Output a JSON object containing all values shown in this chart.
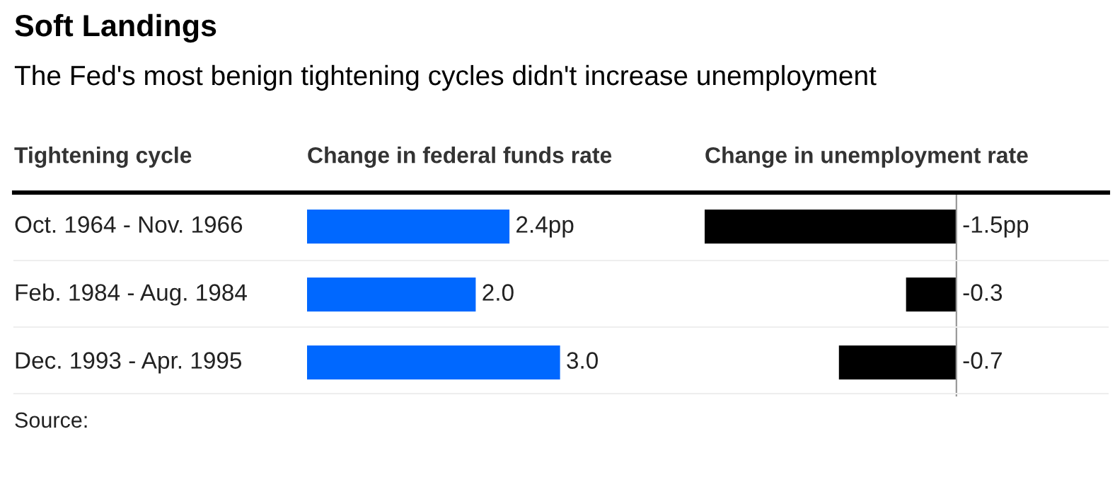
{
  "chart_data": [
    {
      "type": "bar",
      "orientation": "horizontal",
      "title": "Soft Landings",
      "subtitle": "The Fed's most benign tightening cycles didn't increase unemployment",
      "ylabel": "Tightening cycle",
      "xlabel": "Change in federal funds rate",
      "categories": [
        "Oct. 1964 - Nov. 1966",
        "Feb. 1984 - Aug. 1984",
        "Dec. 1993 - Apr. 1995"
      ],
      "values": [
        2.4,
        2.0,
        3.0
      ],
      "value_labels": [
        "2.4pp",
        "2.0",
        "3.0"
      ],
      "color": "#0068ff",
      "legend": false
    },
    {
      "type": "bar",
      "orientation": "horizontal",
      "xlabel": "Change in unemployment rate",
      "categories": [
        null,
        null,
        null
      ],
      "values": [
        -1.5,
        -0.3,
        -0.7
      ],
      "value_labels": [
        "-1.5pp",
        "-0.3",
        "-0.7"
      ],
      "color": "#000000",
      "legend": false,
      "annotations": [
        "Source:"
      ]
    }
  ]
}
